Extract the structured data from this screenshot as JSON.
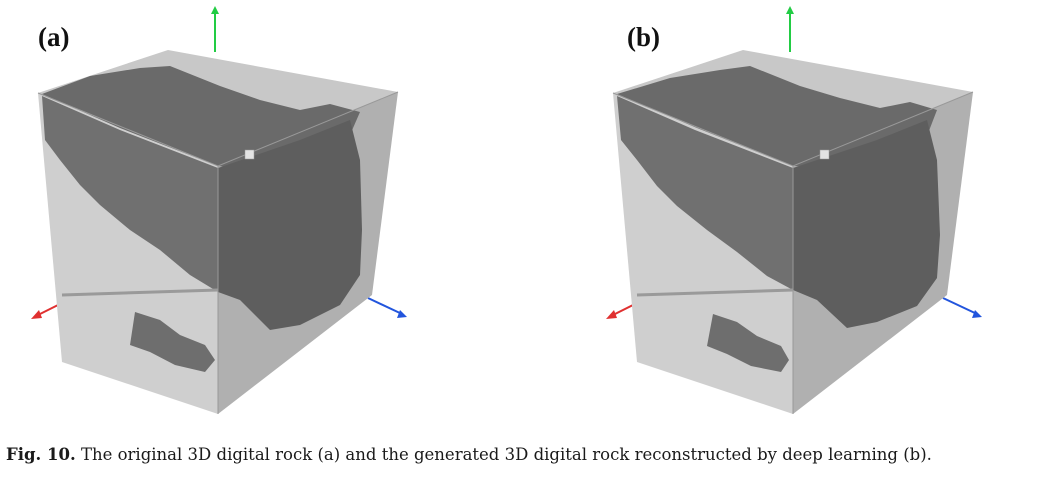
{
  "figure": {
    "panels": [
      {
        "label": "(a)",
        "description_name": "original-rock"
      },
      {
        "label": "(b)",
        "description_name": "generated-rock"
      }
    ],
    "caption": {
      "fig_label": "Fig. 10.",
      "text": "The original 3D digital rock (a) and the generated 3D digital rock reconstructed by deep learning (b)."
    },
    "colors": {
      "solid_light": "#cfcfcf",
      "solid_top": "#c4c4c4",
      "solid_side": "#a8a8a8",
      "pore_dark": "#707070",
      "pore_deep": "#5c5c5c",
      "axis_x": "#e03030",
      "axis_y": "#22cc44",
      "axis_z": "#2255dd"
    }
  }
}
